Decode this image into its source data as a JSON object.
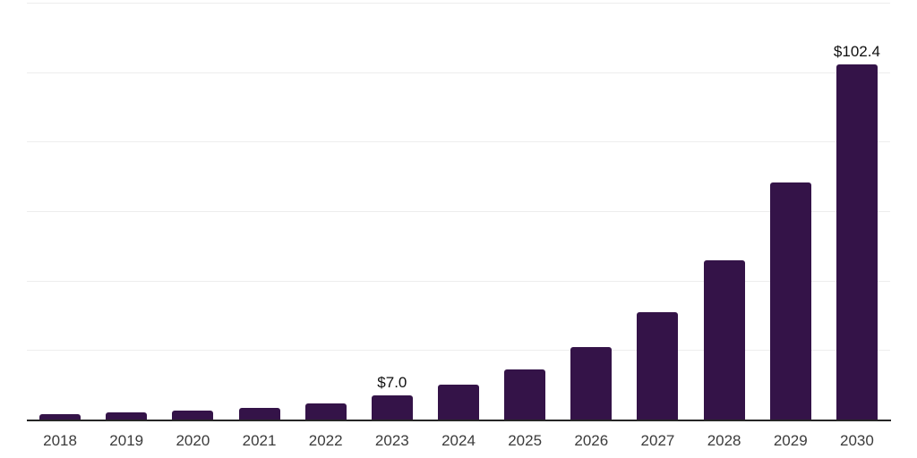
{
  "chart_data": {
    "type": "bar",
    "title": "",
    "xlabel": "",
    "ylabel": "",
    "categories": [
      "2018",
      "2019",
      "2020",
      "2021",
      "2022",
      "2023",
      "2024",
      "2025",
      "2026",
      "2027",
      "2028",
      "2029",
      "2030"
    ],
    "values": [
      1.8,
      2.2,
      2.7,
      3.5,
      4.8,
      7.0,
      10.1,
      14.6,
      21.0,
      31.0,
      46.0,
      68.3,
      102.4
    ],
    "data_labels": [
      "",
      "",
      "",
      "",
      "",
      "$7.0",
      "",
      "",
      "",
      "",
      "",
      "",
      "$102.4"
    ],
    "ylim": [
      0,
      120
    ],
    "grid_step": 20,
    "grid": true,
    "legend": false,
    "bar_color": "#341348",
    "axis_color": "#262626",
    "gridline_color": "#ededed",
    "tick_label_color": "#3b3b3b",
    "data_label_color": "#101010",
    "background_color": "#ffffff"
  }
}
